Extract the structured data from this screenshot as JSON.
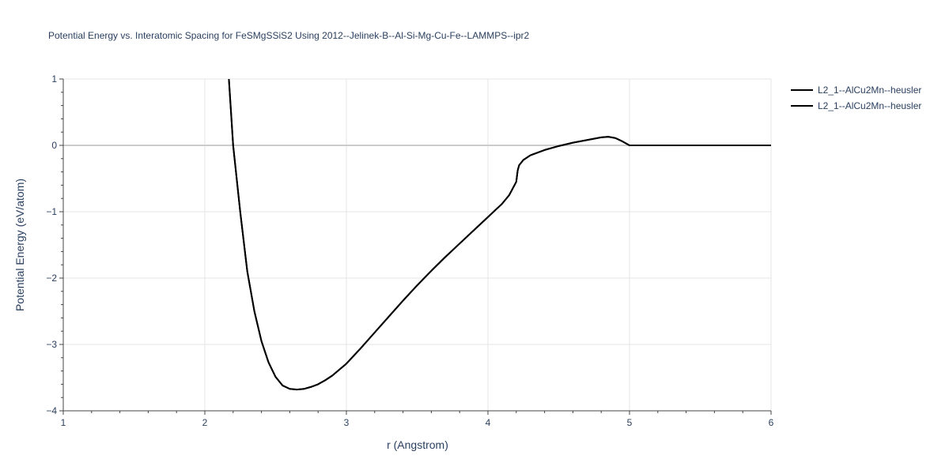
{
  "chart_data": {
    "type": "line",
    "title": "Potential Energy vs. Interatomic Spacing for FeSMgSSiS2 Using 2012--Jelinek-B--Al-Si-Mg-Cu-Fe--LAMMPS--ipr2",
    "xlabel": "r (Angstrom)",
    "ylabel": "Potential Energy (eV/atom)",
    "xlim": [
      1,
      6
    ],
    "ylim": [
      -4,
      1
    ],
    "x_ticks": [
      1,
      2,
      3,
      4,
      5,
      6
    ],
    "y_ticks": [
      1,
      0,
      -1,
      -2,
      -3,
      -4
    ],
    "x_tick_labels": [
      "1",
      "2",
      "3",
      "4",
      "5",
      "6"
    ],
    "y_tick_labels": [
      "1",
      "0",
      "−1",
      "−2",
      "−3",
      "−4"
    ],
    "grid": true,
    "legend_position": "top-right",
    "series": [
      {
        "name": "L2_1--AlCu2Mn--heusler",
        "color": "#000000",
        "x": [
          2.17,
          2.2,
          2.25,
          2.3,
          2.35,
          2.4,
          2.45,
          2.5,
          2.55,
          2.6,
          2.65,
          2.7,
          2.75,
          2.8,
          2.85,
          2.9,
          3.0,
          3.1,
          3.2,
          3.3,
          3.4,
          3.5,
          3.6,
          3.7,
          3.8,
          3.9,
          4.0,
          4.05,
          4.1,
          4.15,
          4.2,
          4.21,
          4.22,
          4.25,
          4.3,
          4.4,
          4.5,
          4.6,
          4.7,
          4.8,
          4.85,
          4.9,
          4.95,
          5.0,
          5.2,
          5.5,
          6.0
        ],
        "y": [
          1.0,
          0.0,
          -1.0,
          -1.9,
          -2.5,
          -2.95,
          -3.27,
          -3.49,
          -3.62,
          -3.67,
          -3.68,
          -3.67,
          -3.64,
          -3.6,
          -3.54,
          -3.47,
          -3.29,
          -3.06,
          -2.82,
          -2.58,
          -2.34,
          -2.11,
          -1.89,
          -1.68,
          -1.48,
          -1.28,
          -1.08,
          -0.98,
          -0.88,
          -0.75,
          -0.55,
          -0.38,
          -0.3,
          -0.22,
          -0.15,
          -0.07,
          -0.01,
          0.04,
          0.08,
          0.12,
          0.13,
          0.11,
          0.06,
          0.0,
          0.0,
          0.0,
          0.0
        ]
      },
      {
        "name": "L2_1--AlCu2Mn--heusler",
        "color": "#000000",
        "x": [
          2.17,
          2.2,
          2.25,
          2.3,
          2.35,
          2.4,
          2.45,
          2.5,
          2.55,
          2.6,
          2.65,
          2.7,
          2.75,
          2.8,
          2.85,
          2.9,
          3.0,
          3.1,
          3.2,
          3.3,
          3.4,
          3.5,
          3.6,
          3.7,
          3.8,
          3.9,
          4.0,
          4.05,
          4.1,
          4.15,
          4.2,
          4.21,
          4.22,
          4.25,
          4.3,
          4.4,
          4.5,
          4.6,
          4.7,
          4.8,
          4.85,
          4.9,
          4.95,
          5.0,
          5.2,
          5.5,
          6.0
        ],
        "y": [
          1.0,
          0.0,
          -1.0,
          -1.9,
          -2.5,
          -2.95,
          -3.27,
          -3.49,
          -3.62,
          -3.67,
          -3.68,
          -3.67,
          -3.64,
          -3.6,
          -3.54,
          -3.47,
          -3.29,
          -3.06,
          -2.82,
          -2.58,
          -2.34,
          -2.11,
          -1.89,
          -1.68,
          -1.48,
          -1.28,
          -1.08,
          -0.98,
          -0.88,
          -0.75,
          -0.55,
          -0.38,
          -0.3,
          -0.22,
          -0.15,
          -0.07,
          -0.01,
          0.04,
          0.08,
          0.12,
          0.13,
          0.11,
          0.06,
          0.0,
          0.0,
          0.0,
          0.0
        ]
      }
    ]
  }
}
